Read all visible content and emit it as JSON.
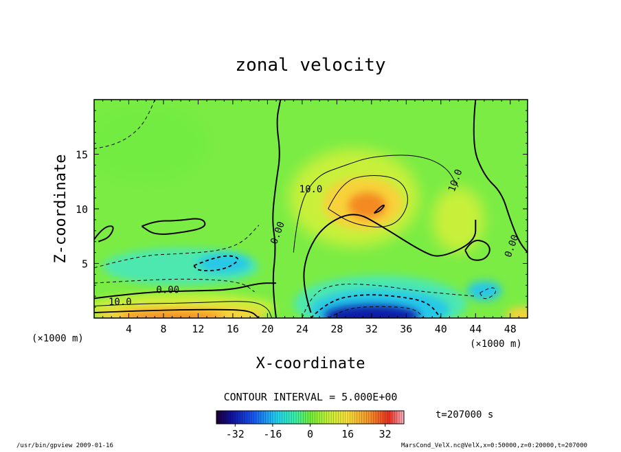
{
  "chart_data": {
    "type": "heatmap",
    "title": "zonal velocity",
    "xlabel": "X-coordinate",
    "ylabel": "Z-coordinate",
    "x_unit": "(×1000 m)",
    "z_unit": "(×1000 m)",
    "xlim": [
      0,
      50
    ],
    "ylim": [
      0,
      20
    ],
    "x_ticks": [
      4,
      8,
      12,
      16,
      20,
      24,
      28,
      32,
      36,
      40,
      44,
      48
    ],
    "y_ticks": [
      5,
      10,
      15
    ],
    "contour_interval_label": "CONTOUR INTERVAL = 5.000E+00",
    "contour_labels": [
      {
        "text": "0.00",
        "x": 8.5,
        "z": 2.3
      },
      {
        "text": "10.0",
        "x": 3.0,
        "z": 1.2
      },
      {
        "text": "0.00",
        "x": 21.5,
        "z": 7.7
      },
      {
        "text": "10.0",
        "x": 25.0,
        "z": 11.5
      },
      {
        "text": "10.0",
        "x": 42.0,
        "z": 12.5
      },
      {
        "text": "0.00",
        "x": 48.5,
        "z": 6.5
      }
    ],
    "colorbar": {
      "range": [
        -40,
        40
      ],
      "ticks": [
        -32,
        -16,
        0,
        16,
        32
      ]
    },
    "time_label": "t=207000 s",
    "colors": {
      "strong_negative": "#0b1ea8",
      "negative": "#28c8e8",
      "weak_negative": "#4ee8b0",
      "zero": "#72ec40",
      "weak_positive": "#c8f03a",
      "positive": "#f8d23a",
      "strong_positive": "#f48a22"
    },
    "features": [
      {
        "name": "upper-jet-maximum",
        "x": 31,
        "z": 10.5,
        "value": 22
      },
      {
        "name": "surface-jet-west",
        "x": 10,
        "z": 0.5,
        "value": 18
      },
      {
        "name": "return-flow-minimum",
        "x": 32,
        "z": 0.5,
        "value": -33
      },
      {
        "name": "mid-level-negative",
        "x": 14,
        "z": 5,
        "value": -8
      }
    ]
  },
  "footer": {
    "program": "/usr/bin/gpview  2009-01-16",
    "source": "MarsCond_VelX.nc@VelX,x=0:50000,z=0:20000,t=207000"
  }
}
